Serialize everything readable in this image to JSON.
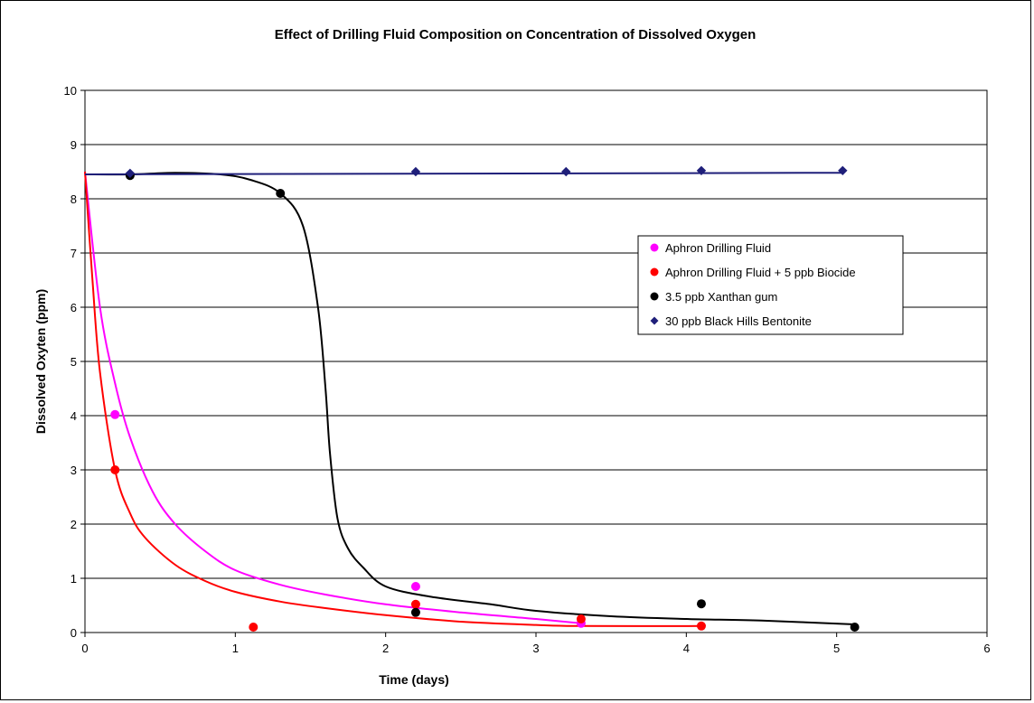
{
  "chart_data": {
    "type": "scatter",
    "title": "Effect of Drilling Fluid Composition on Concentration of Dissolved Oxygen",
    "xlabel": "Time (days)",
    "ylabel": "Dissolved Oxyten (ppm)",
    "xlim": [
      0,
      6
    ],
    "ylim": [
      0,
      10
    ],
    "x_ticks": [
      "0",
      "1",
      "2",
      "3",
      "4",
      "5",
      "6"
    ],
    "y_ticks": [
      "0",
      "1",
      "2",
      "3",
      "4",
      "5",
      "6",
      "7",
      "8",
      "9",
      "10"
    ],
    "grid": "horizontal",
    "legend_position": "right",
    "series": [
      {
        "name": "Aphron Drilling Fluid",
        "color": "#ff00ff",
        "marker": "circle",
        "points": [
          [
            0.2,
            4.02
          ],
          [
            2.2,
            0.85
          ],
          [
            3.3,
            0.17
          ]
        ],
        "trend": [
          [
            0.0,
            8.5
          ],
          [
            0.1,
            6.0
          ],
          [
            0.2,
            4.6
          ],
          [
            0.3,
            3.6
          ],
          [
            0.45,
            2.6
          ],
          [
            0.6,
            2.0
          ],
          [
            0.8,
            1.5
          ],
          [
            1.0,
            1.15
          ],
          [
            1.3,
            0.88
          ],
          [
            1.6,
            0.7
          ],
          [
            2.0,
            0.52
          ],
          [
            2.5,
            0.37
          ],
          [
            3.0,
            0.25
          ],
          [
            3.3,
            0.17
          ]
        ]
      },
      {
        "name": "Aphron Drilling Fluid + 5 ppb Biocide",
        "color": "#ff0000",
        "marker": "circle",
        "points": [
          [
            0.2,
            3.0
          ],
          [
            1.12,
            0.1
          ],
          [
            2.2,
            0.52
          ],
          [
            3.3,
            0.25
          ],
          [
            4.1,
            0.12
          ]
        ],
        "trend": [
          [
            0.0,
            8.5
          ],
          [
            0.05,
            6.5
          ],
          [
            0.1,
            4.8
          ],
          [
            0.2,
            3.0
          ],
          [
            0.3,
            2.2
          ],
          [
            0.4,
            1.75
          ],
          [
            0.6,
            1.25
          ],
          [
            0.8,
            0.95
          ],
          [
            1.0,
            0.75
          ],
          [
            1.3,
            0.57
          ],
          [
            1.6,
            0.45
          ],
          [
            2.0,
            0.32
          ],
          [
            2.5,
            0.2
          ],
          [
            3.0,
            0.14
          ],
          [
            3.3,
            0.12
          ],
          [
            4.1,
            0.12
          ]
        ]
      },
      {
        "name": "3.5 ppb Xanthan gum",
        "color": "#000000",
        "marker": "circle",
        "points": [
          [
            0.3,
            8.43
          ],
          [
            1.3,
            8.1
          ],
          [
            2.2,
            0.37
          ],
          [
            4.1,
            0.53
          ],
          [
            5.12,
            0.1
          ]
        ],
        "trend": [
          [
            0.0,
            8.45
          ],
          [
            0.3,
            8.45
          ],
          [
            0.6,
            8.48
          ],
          [
            0.9,
            8.45
          ],
          [
            1.1,
            8.35
          ],
          [
            1.3,
            8.1
          ],
          [
            1.45,
            7.5
          ],
          [
            1.55,
            6.0
          ],
          [
            1.6,
            4.5
          ],
          [
            1.63,
            3.3
          ],
          [
            1.68,
            2.1
          ],
          [
            1.75,
            1.55
          ],
          [
            1.85,
            1.2
          ],
          [
            2.0,
            0.85
          ],
          [
            2.3,
            0.66
          ],
          [
            2.7,
            0.52
          ],
          [
            3.0,
            0.4
          ],
          [
            3.5,
            0.3
          ],
          [
            4.0,
            0.25
          ],
          [
            4.5,
            0.22
          ],
          [
            5.12,
            0.15
          ]
        ]
      },
      {
        "name": "30 ppb Black Hills Bentonite",
        "color": "#1f1f7a",
        "marker": "diamond",
        "points": [
          [
            0.3,
            8.47
          ],
          [
            2.2,
            8.5
          ],
          [
            3.2,
            8.5
          ],
          [
            4.1,
            8.52
          ],
          [
            5.04,
            8.52
          ]
        ],
        "trend": [
          [
            0.0,
            8.45
          ],
          [
            5.04,
            8.48
          ]
        ]
      }
    ]
  }
}
